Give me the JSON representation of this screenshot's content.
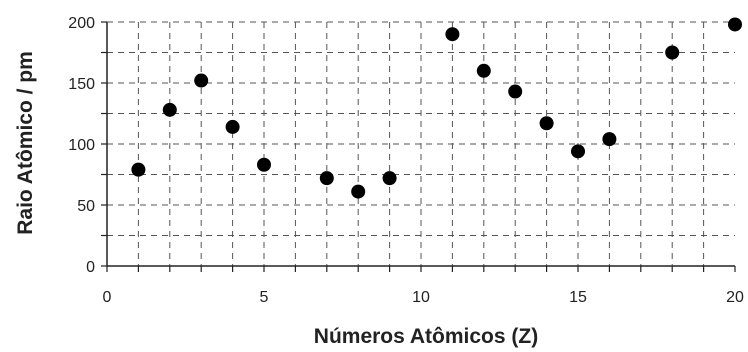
{
  "chart_data": {
    "type": "scatter",
    "title": "",
    "xlabel": "Números Atômicos (Z)",
    "ylabel": "Raio Atômico / pm",
    "xlim": [
      0,
      20
    ],
    "ylim": [
      0,
      200
    ],
    "x_ticks": [
      "0",
      "5",
      "10",
      "15",
      "20"
    ],
    "y_ticks": [
      "0",
      "50",
      "100",
      "150",
      "200"
    ],
    "grid": "dashed",
    "marker_color": "#000000",
    "series": [
      {
        "x": [
          1,
          2,
          3,
          4,
          5,
          7,
          8,
          9,
          11,
          12,
          13,
          14,
          15,
          16,
          18,
          20
        ],
        "y": [
          79,
          128,
          152,
          114,
          83,
          72,
          61,
          72,
          190,
          160,
          143,
          117,
          94,
          104,
          175,
          198
        ]
      }
    ]
  }
}
